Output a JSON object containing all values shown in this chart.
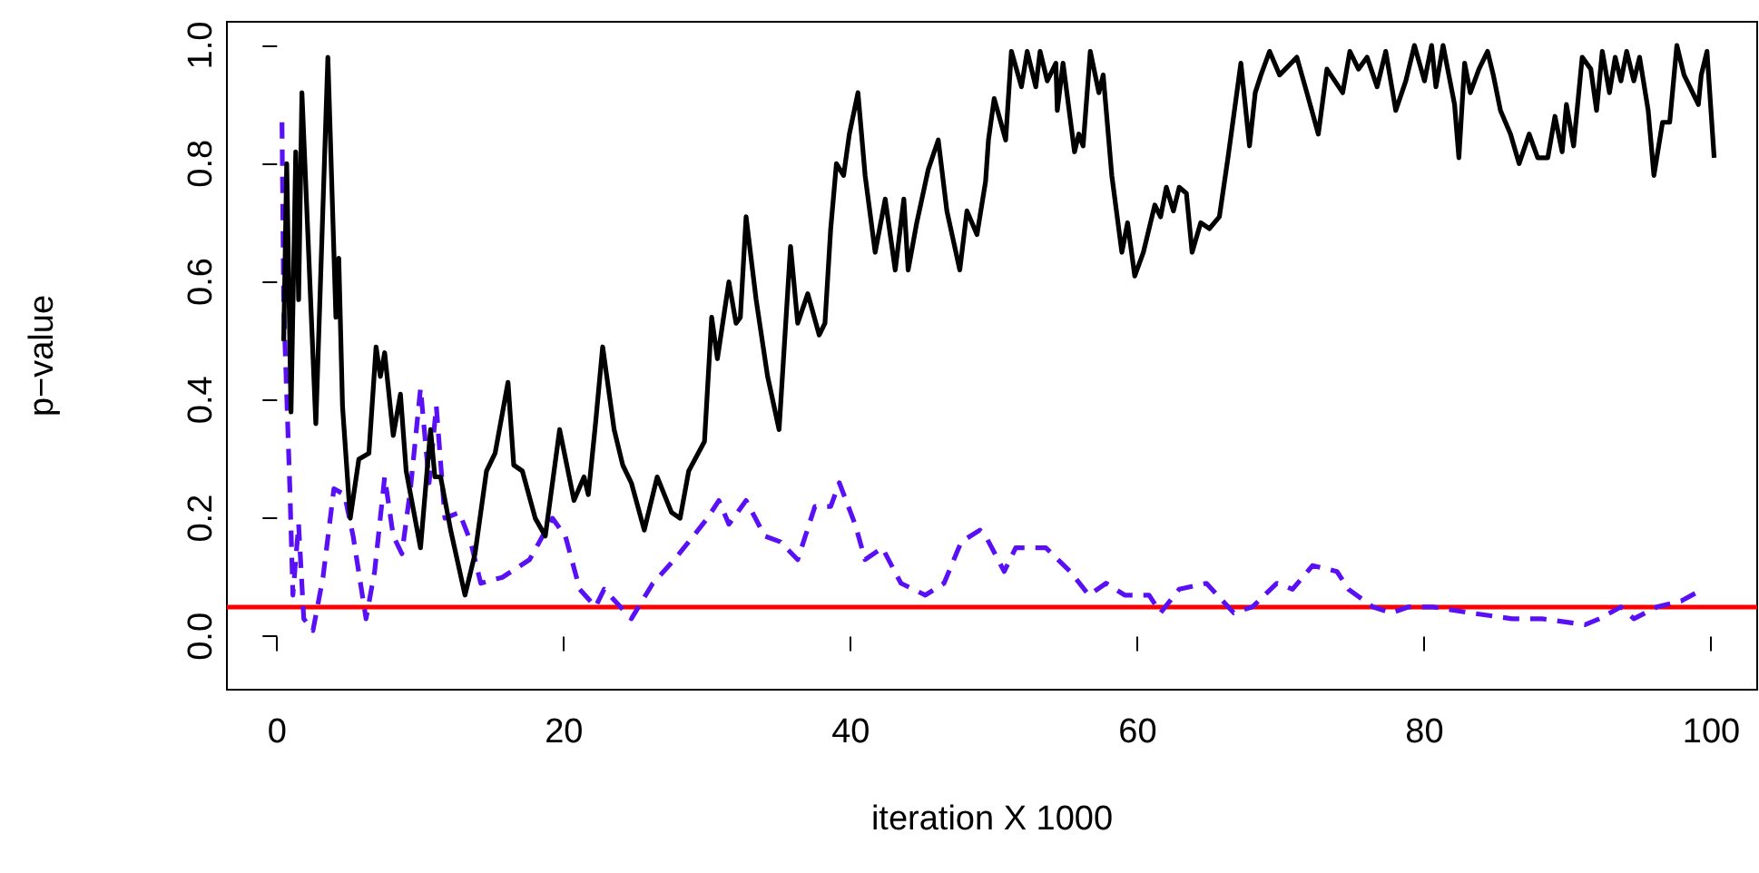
{
  "chart_data": {
    "type": "line",
    "xlabel": "iteration X 1000",
    "ylabel": "p−value",
    "xlim": [
      -3.5,
      103.2
    ],
    "ylim": [
      -0.09,
      1.04
    ],
    "xticks": [
      0,
      20,
      40,
      60,
      80,
      100
    ],
    "yticks": [
      {
        "value": 0,
        "label": "0.0"
      },
      0.2,
      0.4,
      0.6,
      0.8,
      {
        "value": 1,
        "label": "1.0"
      }
    ],
    "grid": false,
    "marker": "none",
    "series": [
      {
        "color": "#000000",
        "line_style": "solid",
        "x": [
          0.46,
          0.67,
          0.97,
          1.3,
          1.5,
          1.73,
          2.7,
          3.54,
          4.1,
          4.3,
          4.56,
          5.1,
          5.7,
          6.4,
          6.9,
          7.2,
          7.5,
          8.1,
          8.6,
          9.0,
          10.0,
          10.7,
          11.0,
          11.4,
          12.1,
          13.1,
          13.8,
          14.6,
          15.2,
          16.1,
          16.5,
          17.1,
          18.0,
          18.7,
          19.7,
          20.7,
          21.4,
          21.7,
          22.2,
          22.7,
          23.5,
          24.1,
          24.7,
          25.6,
          26.5,
          27.5,
          28.1,
          28.7,
          29.8,
          30.3,
          30.7,
          31.5,
          32.0,
          32.3,
          32.7,
          33.4,
          34.2,
          35.0,
          35.8,
          36.3,
          37.0,
          37.8,
          38.2,
          38.6,
          39.0,
          39.5,
          39.9,
          40.5,
          41.0,
          41.7,
          42.4,
          43.1,
          43.7,
          44.0,
          44.6,
          45.4,
          46.1,
          46.7,
          47.6,
          48.1,
          48.8,
          49.4,
          49.6,
          50.0,
          50.8,
          51.2,
          51.9,
          52.3,
          52.9,
          53.2,
          53.7,
          54.3,
          54.4,
          54.8,
          55.6,
          55.9,
          56.2,
          56.7,
          57.3,
          57.6,
          58.2,
          58.9,
          59.3,
          59.8,
          60.4,
          61.2,
          61.6,
          62.0,
          62.5,
          62.9,
          63.4,
          63.8,
          64.4,
          65.0,
          65.7,
          66.3,
          67.2,
          67.8,
          68.2,
          68.6,
          69.2,
          69.9,
          71.1,
          71.8,
          72.6,
          73.2,
          74.3,
          74.8,
          75.4,
          76.0,
          76.7,
          77.3,
          78.0,
          78.7,
          79.3,
          80.0,
          80.5,
          80.8,
          81.3,
          82.1,
          82.4,
          82.8,
          83.2,
          83.8,
          84.4,
          84.8,
          85.3,
          86.0,
          86.6,
          87.3,
          87.9,
          88.6,
          89.1,
          89.6,
          89.9,
          90.4,
          91.0,
          91.6,
          92.0,
          92.4,
          92.9,
          93.3,
          93.7,
          94.1,
          94.6,
          95.0,
          95.6,
          96.0,
          96.6,
          97.1,
          97.6,
          98.1,
          98.5,
          99.1,
          99.3,
          99.7,
          100.2
        ],
        "values": [
          0.5,
          0.8,
          0.38,
          0.82,
          0.57,
          0.92,
          0.36,
          0.98,
          0.54,
          0.64,
          0.39,
          0.2,
          0.3,
          0.31,
          0.49,
          0.44,
          0.48,
          0.34,
          0.41,
          0.28,
          0.15,
          0.35,
          0.27,
          0.27,
          0.18,
          0.07,
          0.14,
          0.28,
          0.31,
          0.43,
          0.29,
          0.28,
          0.2,
          0.17,
          0.35,
          0.23,
          0.27,
          0.24,
          0.36,
          0.49,
          0.35,
          0.29,
          0.26,
          0.18,
          0.27,
          0.21,
          0.2,
          0.28,
          0.33,
          0.54,
          0.47,
          0.6,
          0.53,
          0.54,
          0.71,
          0.57,
          0.44,
          0.35,
          0.66,
          0.53,
          0.58,
          0.51,
          0.53,
          0.69,
          0.8,
          0.78,
          0.85,
          0.92,
          0.78,
          0.65,
          0.74,
          0.62,
          0.74,
          0.62,
          0.7,
          0.79,
          0.84,
          0.72,
          0.62,
          0.72,
          0.68,
          0.77,
          0.84,
          0.91,
          0.84,
          0.99,
          0.93,
          0.99,
          0.93,
          0.99,
          0.94,
          0.97,
          0.89,
          0.97,
          0.82,
          0.85,
          0.83,
          0.99,
          0.92,
          0.95,
          0.78,
          0.65,
          0.7,
          0.61,
          0.65,
          0.73,
          0.71,
          0.76,
          0.72,
          0.76,
          0.75,
          0.65,
          0.7,
          0.69,
          0.71,
          0.81,
          0.97,
          0.83,
          0.92,
          0.95,
          0.99,
          0.95,
          0.98,
          0.92,
          0.85,
          0.96,
          0.92,
          0.99,
          0.96,
          0.98,
          0.93,
          0.99,
          0.89,
          0.94,
          1.0,
          0.94,
          1.0,
          0.93,
          1.0,
          0.9,
          0.81,
          0.97,
          0.92,
          0.96,
          0.99,
          0.95,
          0.89,
          0.85,
          0.8,
          0.85,
          0.81,
          0.81,
          0.88,
          0.82,
          0.9,
          0.83,
          0.98,
          0.96,
          0.89,
          0.99,
          0.92,
          0.98,
          0.94,
          0.99,
          0.94,
          0.98,
          0.89,
          0.78,
          0.87,
          0.87,
          1.0,
          0.95,
          0.93,
          0.9,
          0.95,
          0.99,
          0.81
        ]
      },
      {
        "color": "#5a10f5",
        "line_style": "dashed",
        "x": [
          0.34,
          0.46,
          0.89,
          1.1,
          1.5,
          1.86,
          2.5,
          3.2,
          3.96,
          4.7,
          5.3,
          6.2,
          6.8,
          7.5,
          8.1,
          8.7,
          9.3,
          10.0,
          10.6,
          11.1,
          11.7,
          12.7,
          13.5,
          14.2,
          15.7,
          17.6,
          19.2,
          20.1,
          21.1,
          22.2,
          22.8,
          24.7,
          26.2,
          27.7,
          28.7,
          30.0,
          30.8,
          31.5,
          32.7,
          34.0,
          35.1,
          36.3,
          37.5,
          38.6,
          39.2,
          40.3,
          41.0,
          42.2,
          43.5,
          45.2,
          46.5,
          47.7,
          49.0,
          49.4,
          50.7,
          51.5,
          53.0,
          53.6,
          55.3,
          56.6,
          57.8,
          59.1,
          60.8,
          61.6,
          62.9,
          64.8,
          66.7,
          68.0,
          69.7,
          70.8,
          72.2,
          73.9,
          74.7,
          76.4,
          77.7,
          78.9,
          80.6,
          83.2,
          86.1,
          88.2,
          91.2,
          92.2,
          93.7,
          94.6,
          96.2,
          97.9,
          99.4
        ],
        "values": [
          0.87,
          0.56,
          0.25,
          0.07,
          0.19,
          0.03,
          0.01,
          0.1,
          0.25,
          0.24,
          0.17,
          0.03,
          0.11,
          0.27,
          0.17,
          0.14,
          0.25,
          0.42,
          0.26,
          0.39,
          0.2,
          0.21,
          0.16,
          0.09,
          0.1,
          0.13,
          0.2,
          0.17,
          0.08,
          0.05,
          0.08,
          0.03,
          0.09,
          0.13,
          0.16,
          0.2,
          0.23,
          0.19,
          0.23,
          0.17,
          0.16,
          0.13,
          0.22,
          0.22,
          0.26,
          0.19,
          0.13,
          0.15,
          0.09,
          0.07,
          0.09,
          0.16,
          0.18,
          0.17,
          0.11,
          0.15,
          0.15,
          0.15,
          0.11,
          0.07,
          0.09,
          0.07,
          0.07,
          0.04,
          0.08,
          0.09,
          0.04,
          0.05,
          0.09,
          0.08,
          0.12,
          0.11,
          0.08,
          0.05,
          0.04,
          0.05,
          0.05,
          0.04,
          0.03,
          0.03,
          0.02,
          0.03,
          0.05,
          0.03,
          0.05,
          0.06,
          0.08
        ]
      }
    ],
    "ref_lines": [
      {
        "axis": "y",
        "value": 0.05,
        "color": "#ff0000",
        "line_style": "solid"
      }
    ]
  }
}
